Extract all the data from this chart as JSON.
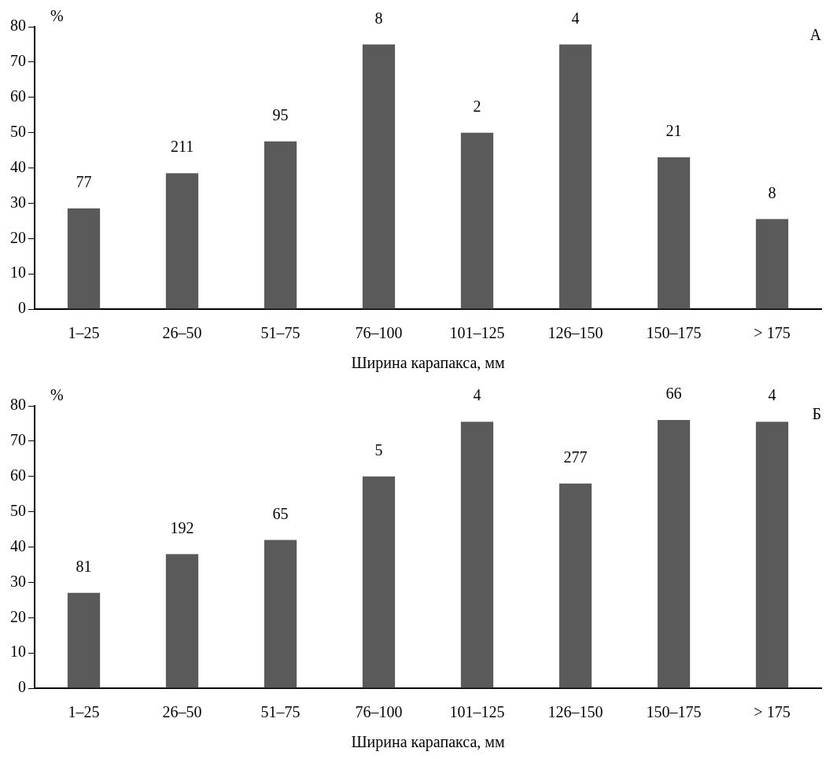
{
  "chart_data": [
    {
      "type": "bar",
      "ylabel": "%",
      "xlabel": "Ширина карапакса, мм",
      "categories": [
        "1–25",
        "26–50",
        "51–75",
        "76–100",
        "101–125",
        "126–150",
        "150–175",
        "> 175"
      ],
      "values": [
        28.5,
        38.5,
        47.5,
        75,
        50,
        75,
        43,
        25.5
      ],
      "color": "#5a5a5a",
      "ylim": [
        0,
        80
      ],
      "yticks": [
        0,
        10,
        20,
        30,
        40,
        50,
        60,
        70,
        80
      ],
      "annotations": [
        "А",
        {
          "text": "77",
          "x": "1–25",
          "y": 28.5
        },
        {
          "text": "211",
          "x": "26–50",
          "y": 38.5
        },
        {
          "text": "95",
          "x": "51–75",
          "y": 47.5
        },
        {
          "text": "8",
          "x": "76–100",
          "y": 75
        },
        {
          "text": "2",
          "x": "101–125",
          "y": 50
        },
        {
          "text": "4",
          "x": "126–150",
          "y": 75
        },
        {
          "text": "21",
          "x": "150–175",
          "y": 43
        },
        {
          "text": "8",
          "x": "> 175",
          "y": 25.5
        }
      ]
    },
    {
      "type": "bar",
      "ylabel": "%",
      "xlabel": "Ширина карапакса, мм",
      "categories": [
        "1–25",
        "26–50",
        "51–75",
        "76–100",
        "101–125",
        "126–150",
        "150–175",
        "> 175"
      ],
      "values": [
        27,
        38,
        42,
        60,
        75.5,
        58,
        76,
        75.5
      ],
      "color": "#5a5a5a",
      "ylim": [
        0,
        80
      ],
      "yticks": [
        0,
        10,
        20,
        30,
        40,
        50,
        60,
        70,
        80
      ],
      "annotations": [
        "Б",
        {
          "text": "81",
          "x": "1–25",
          "y": 27
        },
        {
          "text": "192",
          "x": "26–50",
          "y": 38
        },
        {
          "text": "65",
          "x": "51–75",
          "y": 42
        },
        {
          "text": "5",
          "x": "76–100",
          "y": 60
        },
        {
          "text": "4",
          "x": "101–125",
          "y": 75.5
        },
        {
          "text": "277",
          "x": "126–150",
          "y": 58
        },
        {
          "text": "66",
          "x": "150–175",
          "y": 76
        },
        {
          "text": "4",
          "x": "> 175",
          "y": 75.5
        }
      ]
    }
  ]
}
